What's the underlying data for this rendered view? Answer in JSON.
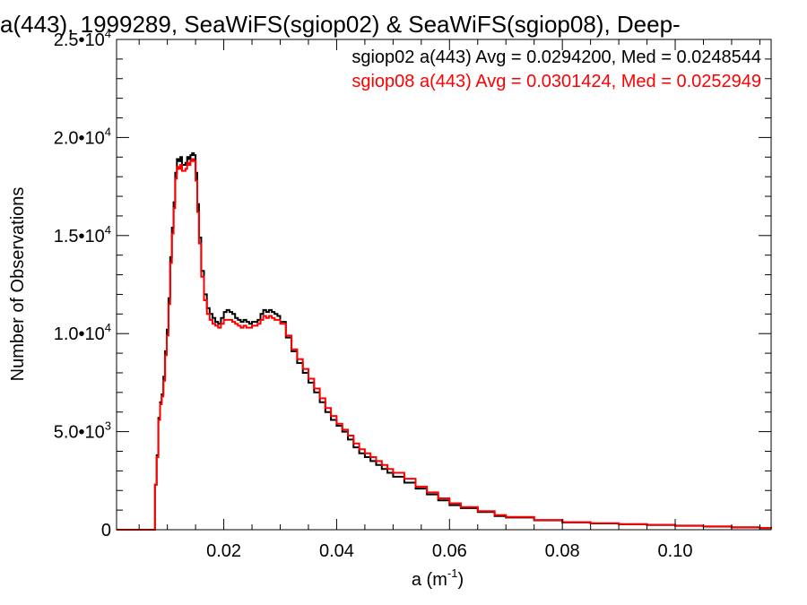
{
  "chart_data": {
    "type": "line",
    "step": true,
    "title": "a(443), 1999289, SeaWiFS(sgiop02) & SeaWiFS(sgiop08), Deep-",
    "xlabel": "a (m",
    "xlabel_sup": "-1",
    "xlabel_suffix": ")",
    "ylabel": "Number of Observations",
    "xlim": [
      0.001,
      0.117
    ],
    "ylim": [
      0,
      25000
    ],
    "x_ticks": [
      {
        "value": 0.02,
        "label": "0.02"
      },
      {
        "value": 0.04,
        "label": "0.04"
      },
      {
        "value": 0.06,
        "label": "0.06"
      },
      {
        "value": 0.08,
        "label": "0.08"
      },
      {
        "value": 0.1,
        "label": "0.10"
      }
    ],
    "y_ticks": [
      {
        "value": 0,
        "mant": "0",
        "exp": ""
      },
      {
        "value": 5000,
        "mant": "5.0•10",
        "exp": "3"
      },
      {
        "value": 10000,
        "mant": "1.0•10",
        "exp": "4"
      },
      {
        "value": 15000,
        "mant": "1.5•10",
        "exp": "4"
      },
      {
        "value": 20000,
        "mant": "2.0•10",
        "exp": "4"
      },
      {
        "value": 25000,
        "mant": "2.5•10",
        "exp": "4"
      }
    ],
    "legend_placement": "top-right",
    "series": [
      {
        "name": "sgiop02 a(443) Avg = 0.0294200, Med = 0.0248544",
        "color": "#000000",
        "x": [
          0.001,
          0.0075,
          0.0078,
          0.0081,
          0.0084,
          0.0087,
          0.009,
          0.0093,
          0.0096,
          0.0099,
          0.0102,
          0.0105,
          0.0108,
          0.0111,
          0.0114,
          0.0117,
          0.012,
          0.0123,
          0.0126,
          0.0129,
          0.0132,
          0.0135,
          0.0138,
          0.0141,
          0.0144,
          0.0147,
          0.015,
          0.0153,
          0.0156,
          0.016,
          0.0165,
          0.017,
          0.0175,
          0.018,
          0.0185,
          0.019,
          0.0195,
          0.02,
          0.0205,
          0.021,
          0.0215,
          0.022,
          0.0225,
          0.023,
          0.0235,
          0.024,
          0.0245,
          0.025,
          0.0255,
          0.026,
          0.0265,
          0.027,
          0.0275,
          0.028,
          0.0285,
          0.029,
          0.0295,
          0.03,
          0.031,
          0.032,
          0.033,
          0.034,
          0.035,
          0.036,
          0.037,
          0.038,
          0.039,
          0.04,
          0.041,
          0.042,
          0.043,
          0.044,
          0.045,
          0.046,
          0.047,
          0.048,
          0.049,
          0.05,
          0.052,
          0.054,
          0.056,
          0.058,
          0.06,
          0.062,
          0.065,
          0.068,
          0.07,
          0.075,
          0.08,
          0.085,
          0.09,
          0.095,
          0.1,
          0.105,
          0.11,
          0.115,
          0.117
        ],
        "values": [
          0,
          0,
          2300,
          3800,
          5700,
          6500,
          6900,
          7800,
          9100,
          10200,
          11800,
          13900,
          15400,
          16700,
          18200,
          18900,
          18800,
          19000,
          18600,
          18600,
          18700,
          19000,
          18900,
          19100,
          19200,
          19100,
          18200,
          16600,
          14900,
          13200,
          12000,
          11300,
          11000,
          10800,
          10600,
          10500,
          10800,
          11100,
          11200,
          11100,
          11000,
          10800,
          10700,
          10600,
          10700,
          10600,
          10500,
          10600,
          10600,
          10700,
          11000,
          11200,
          11100,
          11200,
          11100,
          11000,
          10900,
          10600,
          9800,
          9100,
          8500,
          8000,
          7500,
          7000,
          6500,
          6000,
          5600,
          5300,
          5000,
          4600,
          4200,
          3900,
          3700,
          3500,
          3300,
          3100,
          2900,
          2700,
          2400,
          2100,
          1800,
          1500,
          1250,
          1100,
          900,
          700,
          620,
          480,
          370,
          320,
          280,
          240,
          200,
          160,
          120,
          80,
          60
        ]
      },
      {
        "name": "sgiop08 a(443) Avg = 0.0301424, Med = 0.0252949",
        "color": "#ff0000",
        "x": [
          0.001,
          0.0075,
          0.0078,
          0.0081,
          0.0084,
          0.0087,
          0.009,
          0.0093,
          0.0096,
          0.0099,
          0.0102,
          0.0105,
          0.0108,
          0.0111,
          0.0114,
          0.0117,
          0.012,
          0.0123,
          0.0126,
          0.0129,
          0.0132,
          0.0135,
          0.0138,
          0.0141,
          0.0144,
          0.0147,
          0.015,
          0.0153,
          0.0156,
          0.016,
          0.0165,
          0.017,
          0.0175,
          0.018,
          0.0185,
          0.019,
          0.0195,
          0.02,
          0.0205,
          0.021,
          0.0215,
          0.022,
          0.0225,
          0.023,
          0.0235,
          0.024,
          0.0245,
          0.025,
          0.0255,
          0.026,
          0.0265,
          0.027,
          0.0275,
          0.028,
          0.0285,
          0.029,
          0.0295,
          0.03,
          0.031,
          0.032,
          0.033,
          0.034,
          0.035,
          0.036,
          0.037,
          0.038,
          0.039,
          0.04,
          0.041,
          0.042,
          0.043,
          0.044,
          0.045,
          0.046,
          0.047,
          0.048,
          0.049,
          0.05,
          0.052,
          0.054,
          0.056,
          0.058,
          0.06,
          0.062,
          0.065,
          0.068,
          0.07,
          0.075,
          0.08,
          0.085,
          0.09,
          0.095,
          0.1,
          0.105,
          0.11,
          0.115,
          0.117
        ],
        "values": [
          0,
          0,
          2300,
          3700,
          5600,
          6400,
          6800,
          7600,
          8900,
          9900,
          11500,
          13600,
          15100,
          16400,
          17900,
          18500,
          18400,
          18600,
          18300,
          18300,
          18400,
          18700,
          18600,
          18800,
          18900,
          18800,
          17800,
          16200,
          14600,
          12900,
          11700,
          11000,
          10700,
          10500,
          10400,
          10300,
          10500,
          10700,
          10700,
          10700,
          10600,
          10500,
          10400,
          10300,
          10400,
          10300,
          10300,
          10400,
          10400,
          10500,
          10700,
          10900,
          10800,
          10900,
          10800,
          10700,
          10700,
          10500,
          9900,
          9200,
          8700,
          8200,
          7700,
          7200,
          6700,
          6200,
          5800,
          5400,
          5100,
          4800,
          4400,
          4100,
          3900,
          3700,
          3500,
          3300,
          3100,
          2900,
          2600,
          2200,
          1900,
          1600,
          1350,
          1150,
          950,
          750,
          650,
          500,
          390,
          330,
          290,
          250,
          210,
          170,
          130,
          90,
          60
        ]
      }
    ]
  }
}
